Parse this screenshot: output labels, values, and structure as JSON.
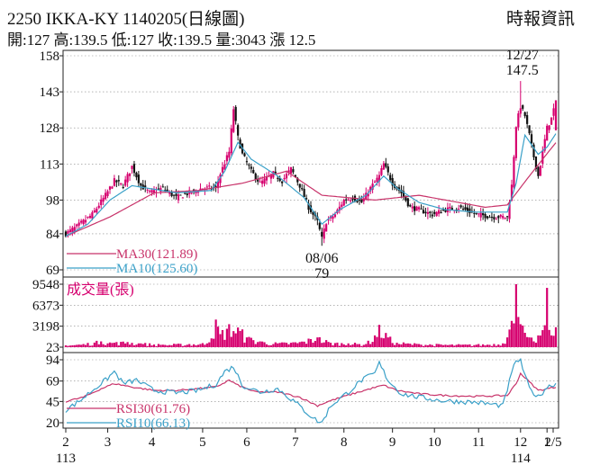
{
  "header": {
    "title": "2250  IKKA-KY 1140205(日線圖)",
    "ohlc": "開:127 高:139.5 低:127 收:139.5 量:3043 漲 12.5",
    "source": "時報資訊"
  },
  "colors": {
    "up": "#d6006f",
    "down": "#111111",
    "ma30": "#c8336a",
    "ma10": "#3aa0c8",
    "volume": "#d6006f",
    "rsi30": "#c8336a",
    "rsi10": "#3aa0c8"
  },
  "chart_data": [
    {
      "type": "candlestick",
      "title": "",
      "yticks": [
        158,
        143,
        128,
        113,
        98,
        84,
        69
      ],
      "ylim": [
        69,
        158
      ],
      "x_months": [
        "2",
        "3",
        "4",
        "5",
        "6",
        "7",
        "8",
        "9",
        "10",
        "11",
        "12",
        "1",
        "2/5"
      ],
      "x_years": [
        "113",
        "114"
      ],
      "legend": [
        {
          "key": "ma30",
          "label": "MA30(121.89)"
        },
        {
          "key": "ma10",
          "label": "MA10(125.60)"
        }
      ],
      "annotations": [
        {
          "label_date": "12/27",
          "label_value": "147.5",
          "value": 147.5
        },
        {
          "label_date": "08/06",
          "label_value": "79",
          "value": 79
        }
      ],
      "close_anchors": [
        [
          0,
          84
        ],
        [
          5,
          87
        ],
        [
          12,
          92
        ],
        [
          18,
          100
        ],
        [
          22,
          106
        ],
        [
          26,
          104
        ],
        [
          30,
          112
        ],
        [
          34,
          104
        ],
        [
          38,
          101
        ],
        [
          44,
          103
        ],
        [
          50,
          99
        ],
        [
          56,
          101
        ],
        [
          62,
          103
        ],
        [
          68,
          103
        ],
        [
          70,
          109
        ],
        [
          74,
          118
        ],
        [
          76,
          136
        ],
        [
          78,
          124
        ],
        [
          80,
          117
        ],
        [
          84,
          110
        ],
        [
          88,
          105
        ],
        [
          94,
          109
        ],
        [
          98,
          106
        ],
        [
          102,
          111
        ],
        [
          106,
          104
        ],
        [
          110,
          95
        ],
        [
          114,
          89
        ],
        [
          116,
          82
        ],
        [
          118,
          89
        ],
        [
          122,
          92
        ],
        [
          126,
          98
        ],
        [
          130,
          99
        ],
        [
          134,
          97
        ],
        [
          138,
          103
        ],
        [
          142,
          108
        ],
        [
          144,
          113
        ],
        [
          148,
          105
        ],
        [
          152,
          101
        ],
        [
          156,
          95
        ],
        [
          160,
          94
        ],
        [
          166,
          92
        ],
        [
          172,
          94
        ],
        [
          178,
          95
        ],
        [
          186,
          92
        ],
        [
          194,
          91
        ],
        [
          200,
          91
        ],
        [
          202,
          104
        ],
        [
          204,
          129
        ],
        [
          206,
          137
        ],
        [
          208,
          133
        ],
        [
          210,
          125
        ],
        [
          212,
          116
        ],
        [
          214,
          108
        ],
        [
          216,
          118
        ],
        [
          218,
          128
        ],
        [
          220,
          132
        ],
        [
          222,
          139.5
        ]
      ],
      "ma30_anchors": [
        [
          0,
          83
        ],
        [
          20,
          91
        ],
        [
          40,
          101
        ],
        [
          60,
          102
        ],
        [
          80,
          105
        ],
        [
          100,
          110
        ],
        [
          116,
          100
        ],
        [
          140,
          98
        ],
        [
          160,
          100
        ],
        [
          190,
          95
        ],
        [
          200,
          96
        ],
        [
          210,
          108
        ],
        [
          222,
          121.89
        ]
      ],
      "ma10_anchors": [
        [
          0,
          83
        ],
        [
          10,
          88
        ],
        [
          20,
          98
        ],
        [
          30,
          104
        ],
        [
          50,
          101
        ],
        [
          66,
          102
        ],
        [
          72,
          110
        ],
        [
          78,
          122
        ],
        [
          84,
          115
        ],
        [
          96,
          108
        ],
        [
          108,
          99
        ],
        [
          116,
          88
        ],
        [
          124,
          94
        ],
        [
          136,
          100
        ],
        [
          144,
          108
        ],
        [
          150,
          103
        ],
        [
          160,
          97
        ],
        [
          172,
          94
        ],
        [
          186,
          93
        ],
        [
          200,
          93
        ],
        [
          204,
          105
        ],
        [
          208,
          125
        ],
        [
          214,
          117
        ],
        [
          218,
          120
        ],
        [
          222,
          125.6
        ]
      ]
    },
    {
      "type": "bar",
      "title": "成交量(張)",
      "yticks": [
        9548,
        6373,
        3198,
        23
      ],
      "ylim": [
        23,
        9548
      ],
      "spikes": [
        [
          0,
          300
        ],
        [
          8,
          500
        ],
        [
          16,
          900
        ],
        [
          22,
          700
        ],
        [
          28,
          800
        ],
        [
          34,
          600
        ],
        [
          44,
          400
        ],
        [
          56,
          500
        ],
        [
          64,
          600
        ],
        [
          68,
          4200
        ],
        [
          70,
          2000
        ],
        [
          74,
          3500
        ],
        [
          78,
          3000
        ],
        [
          82,
          1500
        ],
        [
          88,
          900
        ],
        [
          96,
          600
        ],
        [
          106,
          800
        ],
        [
          114,
          1500
        ],
        [
          120,
          700
        ],
        [
          128,
          600
        ],
        [
          136,
          500
        ],
        [
          140,
          1800
        ],
        [
          142,
          3400
        ],
        [
          146,
          1500
        ],
        [
          150,
          700
        ],
        [
          160,
          500
        ],
        [
          172,
          400
        ],
        [
          186,
          400
        ],
        [
          198,
          600
        ],
        [
          200,
          1500
        ],
        [
          202,
          4000
        ],
        [
          204,
          9548
        ],
        [
          206,
          3500
        ],
        [
          208,
          2200
        ],
        [
          210,
          1500
        ],
        [
          212,
          900
        ],
        [
          214,
          1800
        ],
        [
          216,
          2600
        ],
        [
          218,
          9000
        ],
        [
          220,
          1800
        ],
        [
          222,
          3043
        ]
      ]
    },
    {
      "type": "line",
      "title": "",
      "yticks": [
        94,
        69,
        45,
        20
      ],
      "ylim": [
        20,
        94
      ],
      "legend": [
        {
          "key": "rsi30",
          "label": "RSI30(61.76)"
        },
        {
          "key": "rsi10",
          "label": "RSI10(66.13)"
        }
      ],
      "rsi30_anchors": [
        [
          0,
          45
        ],
        [
          8,
          50
        ],
        [
          16,
          60
        ],
        [
          22,
          66
        ],
        [
          30,
          62
        ],
        [
          40,
          58
        ],
        [
          50,
          58
        ],
        [
          60,
          60
        ],
        [
          68,
          62
        ],
        [
          74,
          70
        ],
        [
          78,
          64
        ],
        [
          86,
          56
        ],
        [
          96,
          56
        ],
        [
          106,
          50
        ],
        [
          114,
          40
        ],
        [
          120,
          46
        ],
        [
          130,
          54
        ],
        [
          138,
          60
        ],
        [
          144,
          64
        ],
        [
          150,
          58
        ],
        [
          160,
          54
        ],
        [
          172,
          52
        ],
        [
          186,
          51
        ],
        [
          200,
          52
        ],
        [
          204,
          66
        ],
        [
          206,
          78
        ],
        [
          210,
          68
        ],
        [
          214,
          58
        ],
        [
          218,
          60
        ],
        [
          222,
          61.76
        ]
      ],
      "rsi10_anchors": [
        [
          0,
          35
        ],
        [
          6,
          45
        ],
        [
          12,
          58
        ],
        [
          18,
          70
        ],
        [
          22,
          80
        ],
        [
          26,
          66
        ],
        [
          32,
          70
        ],
        [
          40,
          58
        ],
        [
          50,
          55
        ],
        [
          60,
          58
        ],
        [
          68,
          65
        ],
        [
          72,
          80
        ],
        [
          76,
          86
        ],
        [
          80,
          64
        ],
        [
          88,
          56
        ],
        [
          96,
          60
        ],
        [
          104,
          44
        ],
        [
          110,
          30
        ],
        [
          114,
          22
        ],
        [
          116,
          20
        ],
        [
          120,
          40
        ],
        [
          128,
          56
        ],
        [
          134,
          70
        ],
        [
          140,
          78
        ],
        [
          142,
          90
        ],
        [
          146,
          70
        ],
        [
          152,
          54
        ],
        [
          160,
          50
        ],
        [
          170,
          46
        ],
        [
          186,
          44
        ],
        [
          198,
          40
        ],
        [
          202,
          78
        ],
        [
          204,
          94
        ],
        [
          206,
          92
        ],
        [
          210,
          60
        ],
        [
          214,
          50
        ],
        [
          218,
          62
        ],
        [
          222,
          66.13
        ]
      ]
    }
  ]
}
